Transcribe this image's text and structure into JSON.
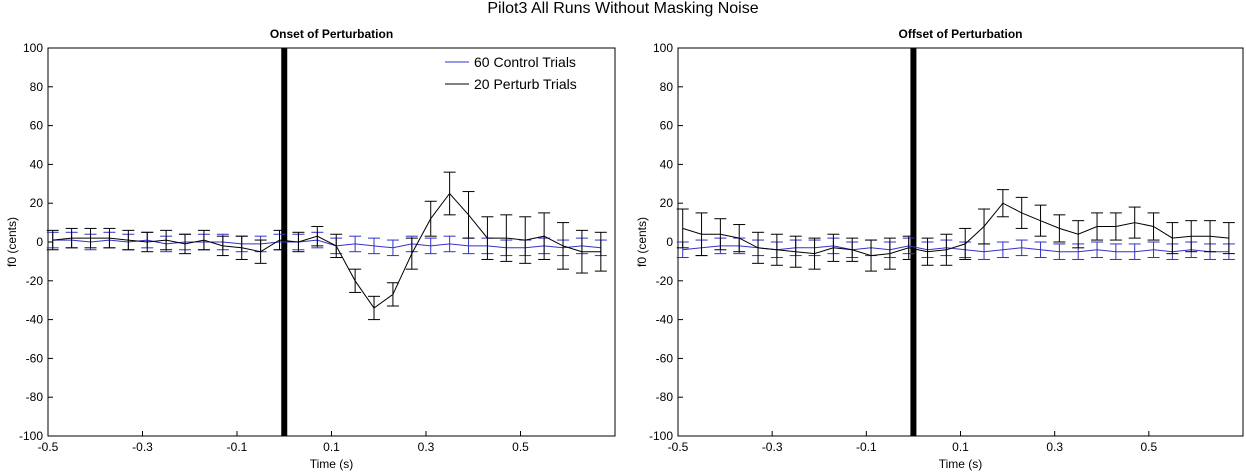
{
  "figure": {
    "suptitle": "Pilot3 All Runs Without Masking Noise"
  },
  "chart_data": [
    {
      "type": "line",
      "title": "Onset of Perturbation",
      "xlabel": "Time (s)",
      "ylabel": "f0 (cents)",
      "xlim": [
        -0.5,
        0.7
      ],
      "ylim": [
        -100,
        100
      ],
      "xticks": [
        -0.5,
        -0.3,
        -0.1,
        0.1,
        0.3,
        0.5
      ],
      "xtick_labels": [
        "-0.5",
        "-0.3",
        "-0.1",
        "0.1",
        "0.3",
        "0.5"
      ],
      "yticks": [
        100,
        80,
        60,
        40,
        20,
        0,
        -20,
        -40,
        -60,
        -80,
        -100
      ],
      "ytick_labels": [
        "100",
        "80",
        "60",
        "40",
        "20",
        "0",
        "-20",
        "-40",
        "-60",
        "-80",
        "-100"
      ],
      "grid": false,
      "legend": "top-right",
      "marker_line_x": 0,
      "series": [
        {
          "name": "60 Control Trials",
          "color": "#3232c8",
          "x": [
            -0.49,
            -0.45,
            -0.41,
            -0.37,
            -0.33,
            -0.29,
            -0.25,
            -0.21,
            -0.17,
            -0.13,
            -0.09,
            -0.05,
            -0.01,
            0.03,
            0.07,
            0.11,
            0.15,
            0.19,
            0.23,
            0.27,
            0.31,
            0.35,
            0.39,
            0.43,
            0.47,
            0.51,
            0.55,
            0.59,
            0.63,
            0.67
          ],
          "y": [
            1,
            1,
            0,
            1,
            0,
            1,
            -1,
            0,
            0,
            0,
            -1,
            -1,
            0,
            0,
            1,
            -2,
            -1,
            -2,
            -3,
            -1,
            -2,
            -1,
            -2,
            -2,
            -3,
            -3,
            -2,
            -3,
            -2,
            -3
          ],
          "err": [
            4,
            4,
            4,
            4,
            4,
            4,
            4,
            4,
            4,
            4,
            4,
            4,
            4,
            4,
            4,
            4,
            4,
            4,
            4,
            4,
            4,
            4,
            4,
            4,
            4,
            4,
            4,
            4,
            4,
            4
          ]
        },
        {
          "name": "20 Perturb Trials",
          "color": "#000000",
          "x": [
            -0.49,
            -0.45,
            -0.41,
            -0.37,
            -0.33,
            -0.29,
            -0.25,
            -0.21,
            -0.17,
            -0.13,
            -0.09,
            -0.05,
            -0.01,
            0.03,
            0.07,
            0.11,
            0.15,
            0.19,
            0.23,
            0.27,
            0.31,
            0.35,
            0.39,
            0.43,
            0.47,
            0.51,
            0.55,
            0.59,
            0.63,
            0.67
          ],
          "y": [
            1,
            2,
            2,
            2,
            1,
            0,
            1,
            -1,
            1,
            -2,
            -3,
            -5,
            1,
            0,
            3,
            -2,
            -20,
            -34,
            -27,
            -6,
            12,
            25,
            14,
            2,
            2,
            1,
            3,
            -2,
            -5,
            -5
          ],
          "err": [
            5,
            5,
            5,
            5,
            5,
            5,
            5,
            5,
            5,
            5,
            6,
            6,
            5,
            5,
            5,
            6,
            6,
            6,
            6,
            8,
            9,
            11,
            12,
            11,
            12,
            12,
            12,
            12,
            11,
            10
          ]
        }
      ]
    },
    {
      "type": "line",
      "title": "Offset of Perturbation",
      "xlabel": "Time (s)",
      "ylabel": "f0 (cents)",
      "xlim": [
        -0.5,
        0.7
      ],
      "ylim": [
        -100,
        100
      ],
      "xticks": [
        -0.5,
        -0.3,
        -0.1,
        0.1,
        0.3,
        0.5
      ],
      "xtick_labels": [
        "-0.5",
        "-0.3",
        "-0.1",
        "0.1",
        "0.3",
        "0.5"
      ],
      "yticks": [
        100,
        80,
        60,
        40,
        20,
        0,
        -20,
        -40,
        -60,
        -80,
        -100
      ],
      "ytick_labels": [
        "100",
        "80",
        "60",
        "40",
        "20",
        "0",
        "-20",
        "-40",
        "-60",
        "-80",
        "-100"
      ],
      "grid": false,
      "legend": "none",
      "marker_line_x": 0,
      "series": [
        {
          "name": "60 Control Trials",
          "color": "#3232c8",
          "x": [
            -0.49,
            -0.45,
            -0.41,
            -0.37,
            -0.33,
            -0.29,
            -0.25,
            -0.21,
            -0.17,
            -0.13,
            -0.09,
            -0.05,
            -0.01,
            0.03,
            0.07,
            0.11,
            0.15,
            0.19,
            0.23,
            0.27,
            0.31,
            0.35,
            0.39,
            0.43,
            0.47,
            0.51,
            0.55,
            0.59,
            0.63,
            0.67
          ],
          "y": [
            -4,
            -3,
            -2,
            -2,
            -3,
            -4,
            -3,
            -3,
            -2,
            -4,
            -3,
            -4,
            -2,
            -4,
            -3,
            -4,
            -5,
            -4,
            -3,
            -4,
            -5,
            -5,
            -4,
            -5,
            -5,
            -4,
            -5,
            -4,
            -5,
            -5
          ],
          "err": [
            4,
            4,
            4,
            4,
            4,
            4,
            4,
            4,
            4,
            4,
            4,
            4,
            4,
            4,
            4,
            4,
            4,
            4,
            4,
            4,
            4,
            4,
            4,
            4,
            4,
            4,
            4,
            4,
            4,
            4
          ]
        },
        {
          "name": "20 Perturb Trials",
          "color": "#000000",
          "x": [
            -0.49,
            -0.45,
            -0.41,
            -0.37,
            -0.33,
            -0.29,
            -0.25,
            -0.21,
            -0.17,
            -0.13,
            -0.09,
            -0.05,
            -0.01,
            0.03,
            0.07,
            0.11,
            0.15,
            0.19,
            0.23,
            0.27,
            0.31,
            0.35,
            0.39,
            0.43,
            0.47,
            0.51,
            0.55,
            0.59,
            0.63,
            0.67
          ],
          "y": [
            7,
            4,
            4,
            2,
            -3,
            -4,
            -5,
            -6,
            -3,
            -4,
            -7,
            -6,
            -3,
            -5,
            -4,
            -1,
            8,
            20,
            15,
            11,
            7,
            4,
            8,
            8,
            10,
            8,
            2,
            3,
            3,
            2
          ],
          "err": [
            10,
            11,
            8,
            7,
            8,
            8,
            8,
            8,
            7,
            6,
            8,
            8,
            6,
            7,
            8,
            8,
            9,
            7,
            8,
            8,
            7,
            7,
            7,
            7,
            8,
            7,
            8,
            8,
            8,
            8
          ]
        }
      ]
    }
  ]
}
